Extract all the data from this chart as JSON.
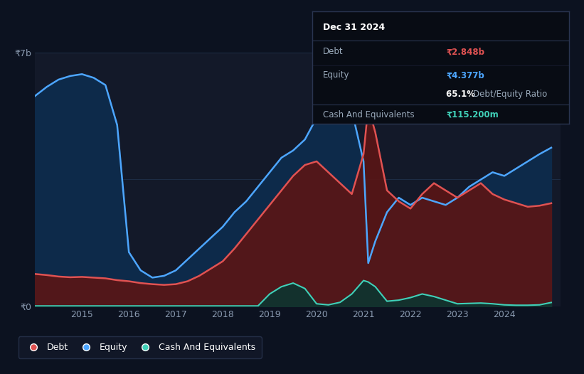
{
  "bg_color": "#0c1220",
  "chart_bg_color": "#131929",
  "grid_color": "#1e2d45",
  "debt_color": "#e05252",
  "equity_color": "#4da6ff",
  "cash_color": "#40d0b8",
  "debt_fill": "#5a1515",
  "equity_fill": "#0d2a4a",
  "cash_fill": "#0d3530",
  "years": [
    2014.0,
    2014.25,
    2014.5,
    2014.75,
    2015.0,
    2015.25,
    2015.5,
    2015.75,
    2016.0,
    2016.25,
    2016.5,
    2016.75,
    2017.0,
    2017.25,
    2017.5,
    2017.75,
    2018.0,
    2018.25,
    2018.5,
    2018.75,
    2019.0,
    2019.25,
    2019.5,
    2019.75,
    2020.0,
    2020.25,
    2020.5,
    2020.75,
    2021.0,
    2021.1,
    2021.25,
    2021.5,
    2021.75,
    2022.0,
    2022.25,
    2022.5,
    2022.75,
    2023.0,
    2023.25,
    2023.5,
    2023.75,
    2024.0,
    2024.25,
    2024.5,
    2024.75,
    2025.0
  ],
  "equity_vals": [
    5.8,
    6.05,
    6.25,
    6.35,
    6.4,
    6.3,
    6.1,
    5.0,
    1.5,
    1.0,
    0.8,
    0.85,
    1.0,
    1.3,
    1.6,
    1.9,
    2.2,
    2.6,
    2.9,
    3.3,
    3.7,
    4.1,
    4.3,
    4.6,
    5.2,
    6.8,
    6.4,
    5.4,
    4.0,
    1.2,
    1.8,
    2.6,
    3.0,
    2.8,
    3.0,
    2.9,
    2.8,
    3.0,
    3.3,
    3.5,
    3.7,
    3.6,
    3.8,
    4.0,
    4.2,
    4.377
  ],
  "debt_vals": [
    0.9,
    0.87,
    0.83,
    0.81,
    0.82,
    0.8,
    0.78,
    0.73,
    0.7,
    0.65,
    0.62,
    0.6,
    0.62,
    0.7,
    0.85,
    1.05,
    1.25,
    1.6,
    2.0,
    2.4,
    2.8,
    3.2,
    3.6,
    3.9,
    4.0,
    3.7,
    3.4,
    3.1,
    4.2,
    5.5,
    4.8,
    3.2,
    2.9,
    2.7,
    3.1,
    3.4,
    3.2,
    3.0,
    3.2,
    3.4,
    3.1,
    2.95,
    2.85,
    2.75,
    2.78,
    2.848
  ],
  "cash_vals": [
    0.02,
    0.02,
    0.02,
    0.02,
    0.02,
    0.02,
    0.02,
    0.02,
    0.02,
    0.02,
    0.02,
    0.02,
    0.02,
    0.02,
    0.02,
    0.02,
    0.02,
    0.02,
    0.02,
    0.02,
    0.35,
    0.55,
    0.65,
    0.5,
    0.08,
    0.05,
    0.12,
    0.35,
    0.72,
    0.68,
    0.55,
    0.15,
    0.18,
    0.25,
    0.35,
    0.28,
    0.18,
    0.08,
    0.09,
    0.1,
    0.08,
    0.05,
    0.04,
    0.04,
    0.05,
    0.1152
  ],
  "ylim": [
    0,
    7
  ],
  "xlim": [
    2014.0,
    2025.2
  ],
  "xtick_years": [
    2015,
    2016,
    2017,
    2018,
    2019,
    2020,
    2021,
    2022,
    2023,
    2024
  ],
  "ylabel_7b": "₹7b",
  "ylabel_0": "₹0",
  "legend_labels": [
    "Debt",
    "Equity",
    "Cash And Equivalents"
  ],
  "legend_colors": [
    "#e05252",
    "#4da6ff",
    "#40d0b8"
  ],
  "tooltip_title": "Dec 31 2024",
  "tooltip_debt_value": "₹2.848b",
  "tooltip_equity_value": "₹4.377b",
  "tooltip_ratio_pct": "65.1%",
  "tooltip_ratio_text": "Debt/Equity Ratio",
  "tooltip_cash_value": "₹115.200m"
}
